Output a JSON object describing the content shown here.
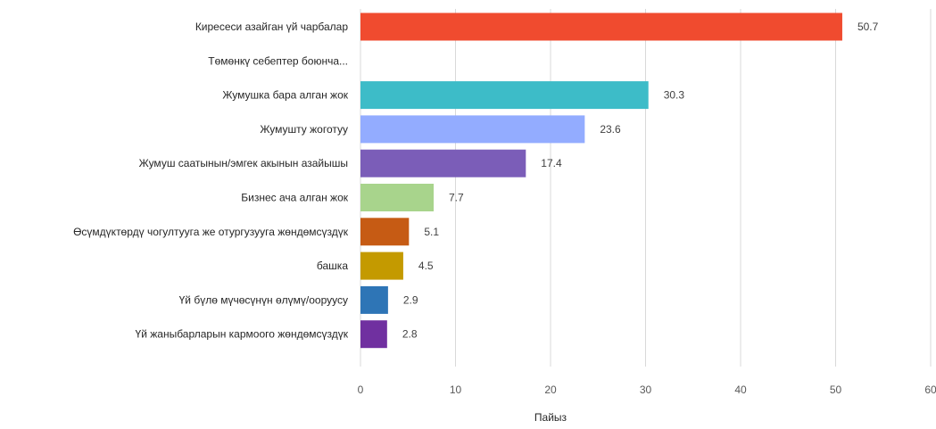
{
  "chart_data": {
    "type": "bar",
    "orientation": "horizontal",
    "xlabel": "Пайыз",
    "xlim": [
      0,
      60
    ],
    "xticks": [
      0,
      10,
      20,
      30,
      40,
      50,
      60
    ],
    "grid": true,
    "bars": [
      {
        "label": "Киресеси азайган үй чарбалар",
        "value": 50.7,
        "value_label": "50.7",
        "color": "#f04b2f"
      },
      {
        "label": "Төмөнкү себептер боюнча...",
        "value": null,
        "value_label": "",
        "color": "#ffffff"
      },
      {
        "label": "Жумушка бара алган жок",
        "value": 30.3,
        "value_label": "30.3",
        "color": "#3dbcc8"
      },
      {
        "label": "Жумушту жоготуу",
        "value": 23.6,
        "value_label": "23.6",
        "color": "#93acff"
      },
      {
        "label": "Жумуш саатынын/эмгек акынын азайышы",
        "value": 17.4,
        "value_label": "17.4",
        "color": "#7b5db8"
      },
      {
        "label": "Бизнес ача алган жок",
        "value": 7.7,
        "value_label": "7.7",
        "color": "#a8d48c"
      },
      {
        "label": "Өсүмдүктөрдү чогултууга же отургузууга жөндөмсүздүк",
        "value": 5.1,
        "value_label": "5.1",
        "color": "#c65b14"
      },
      {
        "label": "башка",
        "value": 4.5,
        "value_label": "4.5",
        "color": "#c49a00"
      },
      {
        "label": "Үй бүлө мүчөсүнүн өлүмү/ооруусу",
        "value": 2.9,
        "value_label": "2.9",
        "color": "#2e75b6"
      },
      {
        "label": "Үй жаныбарларын кармоого жөндөмсүздүк",
        "value": 2.8,
        "value_label": "2.8",
        "color": "#7030a0"
      }
    ]
  }
}
